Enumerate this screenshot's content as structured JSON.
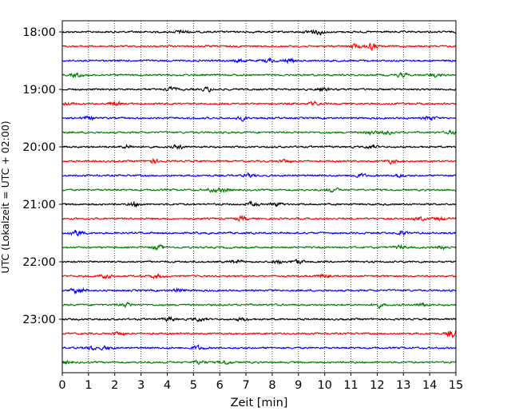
{
  "chart_data": {
    "type": "line",
    "title": "",
    "xlabel": "Zeit  [min]",
    "ylabel": "UTC (Lokalzeit = UTC + 02:00)",
    "xlim": [
      0,
      15
    ],
    "x_ticks": [
      "0",
      "1",
      "2",
      "3",
      "4",
      "5",
      "6",
      "7",
      "8",
      "9",
      "10",
      "11",
      "12",
      "13",
      "14",
      "15"
    ],
    "y_tick_labels": [
      "18:00",
      "19:00",
      "20:00",
      "21:00",
      "22:00",
      "23:00"
    ],
    "rows_per_hour": 4,
    "trace_start": "18:00",
    "trace_count": 24,
    "trace_length_min": 15,
    "series_colors": [
      "#000000",
      "#ff0000",
      "#0000ff",
      "#008000"
    ],
    "grid": {
      "vertical_dotted": true,
      "horizontal": false
    },
    "legend": "none"
  }
}
